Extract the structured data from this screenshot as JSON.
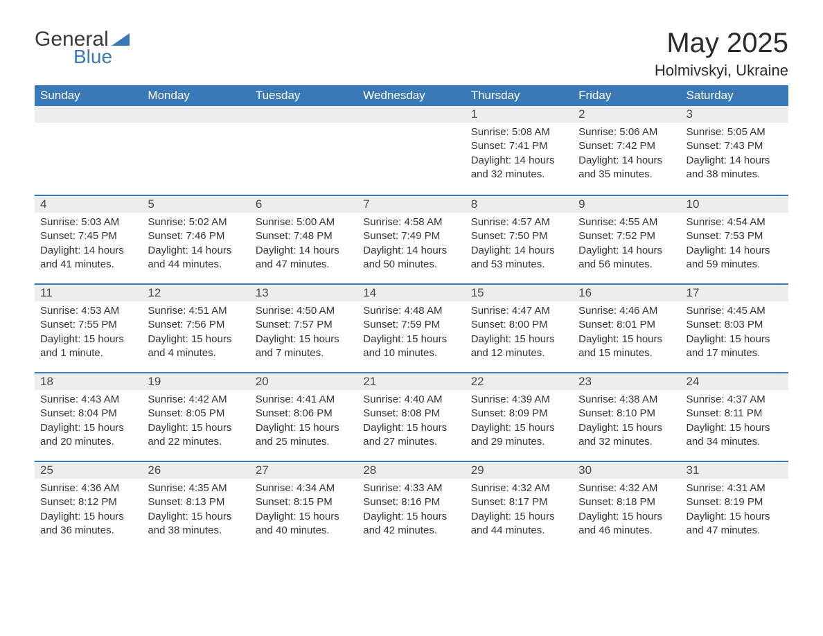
{
  "logo": {
    "text1": "General",
    "text2": "Blue",
    "triangle_color": "#3a79b7"
  },
  "title": "May 2025",
  "location": "Holmivskyi, Ukraine",
  "colors": {
    "header_bg": "#3a79b7",
    "header_text": "#ffffff",
    "daybar_bg": "#ededed",
    "daybar_border": "#3a79b7",
    "text": "#333333",
    "background": "#ffffff"
  },
  "font": {
    "family": "Arial",
    "title_size": 40,
    "location_size": 22,
    "header_size": 17,
    "body_size": 15
  },
  "type": "table",
  "days_of_week": [
    "Sunday",
    "Monday",
    "Tuesday",
    "Wednesday",
    "Thursday",
    "Friday",
    "Saturday"
  ],
  "weeks": [
    [
      null,
      null,
      null,
      null,
      {
        "n": "1",
        "sunrise": "5:08 AM",
        "sunset": "7:41 PM",
        "daylight": "14 hours and 32 minutes."
      },
      {
        "n": "2",
        "sunrise": "5:06 AM",
        "sunset": "7:42 PM",
        "daylight": "14 hours and 35 minutes."
      },
      {
        "n": "3",
        "sunrise": "5:05 AM",
        "sunset": "7:43 PM",
        "daylight": "14 hours and 38 minutes."
      }
    ],
    [
      {
        "n": "4",
        "sunrise": "5:03 AM",
        "sunset": "7:45 PM",
        "daylight": "14 hours and 41 minutes."
      },
      {
        "n": "5",
        "sunrise": "5:02 AM",
        "sunset": "7:46 PM",
        "daylight": "14 hours and 44 minutes."
      },
      {
        "n": "6",
        "sunrise": "5:00 AM",
        "sunset": "7:48 PM",
        "daylight": "14 hours and 47 minutes."
      },
      {
        "n": "7",
        "sunrise": "4:58 AM",
        "sunset": "7:49 PM",
        "daylight": "14 hours and 50 minutes."
      },
      {
        "n": "8",
        "sunrise": "4:57 AM",
        "sunset": "7:50 PM",
        "daylight": "14 hours and 53 minutes."
      },
      {
        "n": "9",
        "sunrise": "4:55 AM",
        "sunset": "7:52 PM",
        "daylight": "14 hours and 56 minutes."
      },
      {
        "n": "10",
        "sunrise": "4:54 AM",
        "sunset": "7:53 PM",
        "daylight": "14 hours and 59 minutes."
      }
    ],
    [
      {
        "n": "11",
        "sunrise": "4:53 AM",
        "sunset": "7:55 PM",
        "daylight": "15 hours and 1 minute."
      },
      {
        "n": "12",
        "sunrise": "4:51 AM",
        "sunset": "7:56 PM",
        "daylight": "15 hours and 4 minutes."
      },
      {
        "n": "13",
        "sunrise": "4:50 AM",
        "sunset": "7:57 PM",
        "daylight": "15 hours and 7 minutes."
      },
      {
        "n": "14",
        "sunrise": "4:48 AM",
        "sunset": "7:59 PM",
        "daylight": "15 hours and 10 minutes."
      },
      {
        "n": "15",
        "sunrise": "4:47 AM",
        "sunset": "8:00 PM",
        "daylight": "15 hours and 12 minutes."
      },
      {
        "n": "16",
        "sunrise": "4:46 AM",
        "sunset": "8:01 PM",
        "daylight": "15 hours and 15 minutes."
      },
      {
        "n": "17",
        "sunrise": "4:45 AM",
        "sunset": "8:03 PM",
        "daylight": "15 hours and 17 minutes."
      }
    ],
    [
      {
        "n": "18",
        "sunrise": "4:43 AM",
        "sunset": "8:04 PM",
        "daylight": "15 hours and 20 minutes."
      },
      {
        "n": "19",
        "sunrise": "4:42 AM",
        "sunset": "8:05 PM",
        "daylight": "15 hours and 22 minutes."
      },
      {
        "n": "20",
        "sunrise": "4:41 AM",
        "sunset": "8:06 PM",
        "daylight": "15 hours and 25 minutes."
      },
      {
        "n": "21",
        "sunrise": "4:40 AM",
        "sunset": "8:08 PM",
        "daylight": "15 hours and 27 minutes."
      },
      {
        "n": "22",
        "sunrise": "4:39 AM",
        "sunset": "8:09 PM",
        "daylight": "15 hours and 29 minutes."
      },
      {
        "n": "23",
        "sunrise": "4:38 AM",
        "sunset": "8:10 PM",
        "daylight": "15 hours and 32 minutes."
      },
      {
        "n": "24",
        "sunrise": "4:37 AM",
        "sunset": "8:11 PM",
        "daylight": "15 hours and 34 minutes."
      }
    ],
    [
      {
        "n": "25",
        "sunrise": "4:36 AM",
        "sunset": "8:12 PM",
        "daylight": "15 hours and 36 minutes."
      },
      {
        "n": "26",
        "sunrise": "4:35 AM",
        "sunset": "8:13 PM",
        "daylight": "15 hours and 38 minutes."
      },
      {
        "n": "27",
        "sunrise": "4:34 AM",
        "sunset": "8:15 PM",
        "daylight": "15 hours and 40 minutes."
      },
      {
        "n": "28",
        "sunrise": "4:33 AM",
        "sunset": "8:16 PM",
        "daylight": "15 hours and 42 minutes."
      },
      {
        "n": "29",
        "sunrise": "4:32 AM",
        "sunset": "8:17 PM",
        "daylight": "15 hours and 44 minutes."
      },
      {
        "n": "30",
        "sunrise": "4:32 AM",
        "sunset": "8:18 PM",
        "daylight": "15 hours and 46 minutes."
      },
      {
        "n": "31",
        "sunrise": "4:31 AM",
        "sunset": "8:19 PM",
        "daylight": "15 hours and 47 minutes."
      }
    ]
  ],
  "labels": {
    "sunrise": "Sunrise:",
    "sunset": "Sunset:",
    "daylight": "Daylight:"
  }
}
